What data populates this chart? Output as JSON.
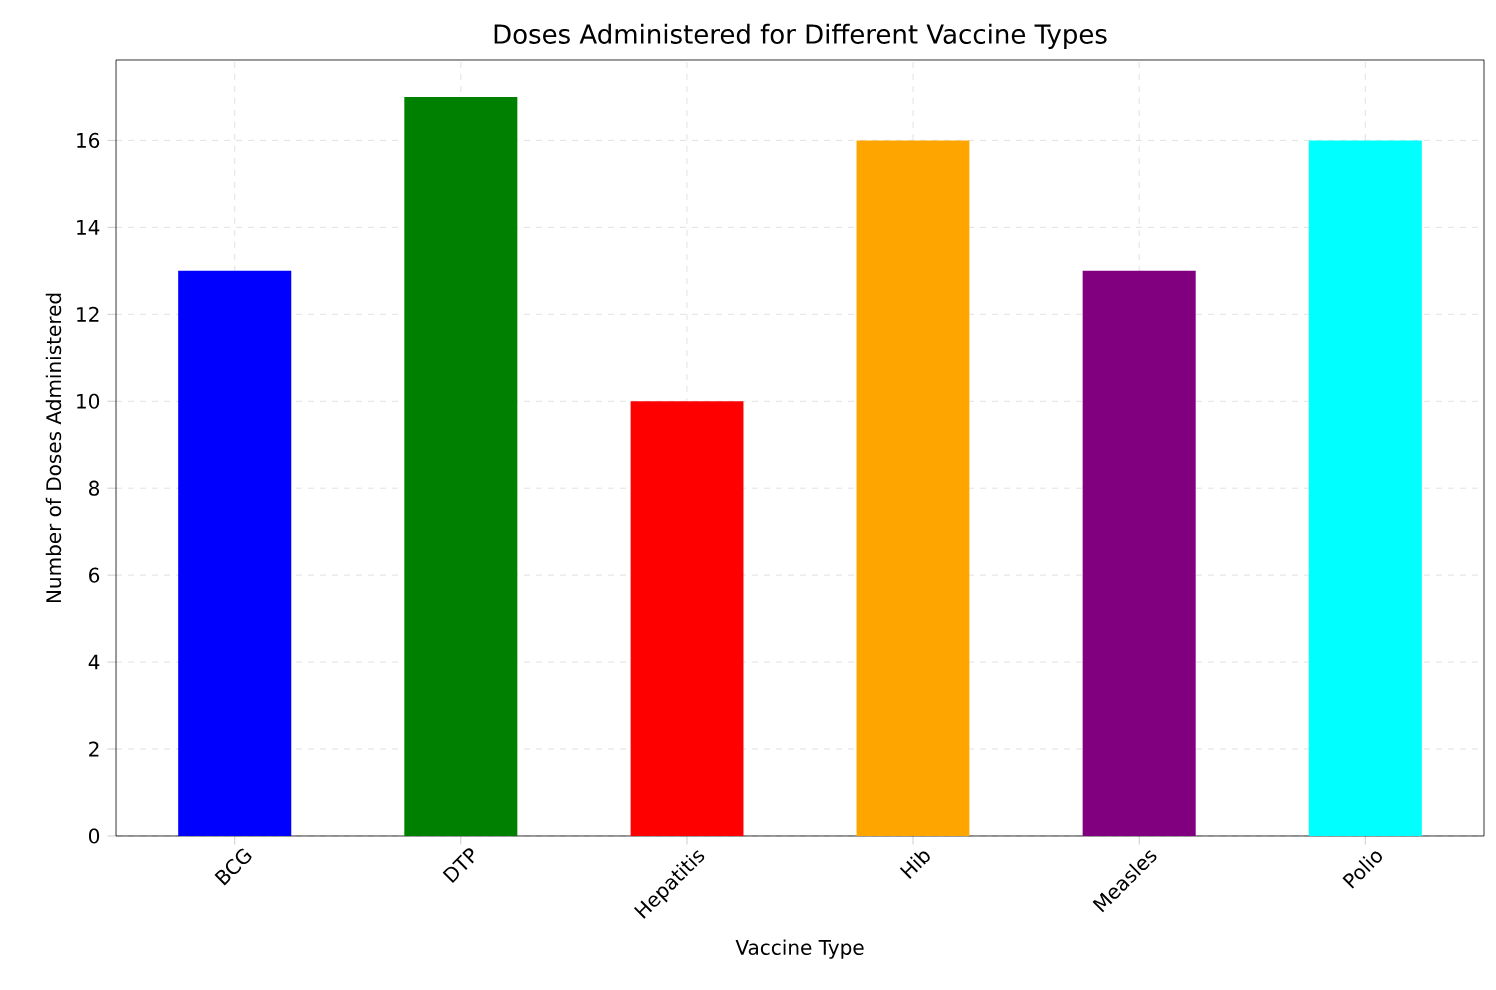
{
  "chart_data": {
    "type": "bar",
    "title": "Doses Administered for Different Vaccine Types",
    "xlabel": "Vaccine Type",
    "ylabel": "Number of Doses Administered",
    "categories": [
      "BCG",
      "DTP",
      "Hepatitis",
      "Hib",
      "Measles",
      "Polio"
    ],
    "values": [
      13,
      17,
      10,
      16,
      13,
      16
    ],
    "colors": [
      "#0000ff",
      "#008000",
      "#ff0000",
      "#ffa500",
      "#800080",
      "#00ffff"
    ],
    "ylim": [
      0,
      17.85
    ],
    "yticks": [
      0,
      2,
      4,
      6,
      8,
      10,
      12,
      14,
      16
    ],
    "grid": true
  }
}
